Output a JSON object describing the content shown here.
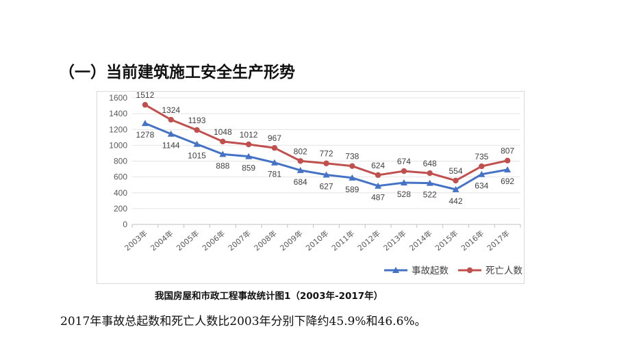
{
  "heading": "（一）当前建筑施工安全生产形势",
  "caption": "我国房屋和市政工程事故统计图1（2003年-2017年）",
  "summary": "2017年事故总起数和死亡人数比2003年分别下降约45.9%和46.6%。",
  "chart_data": {
    "type": "line",
    "title": "",
    "xlabel": "",
    "ylabel": "",
    "categories": [
      "2003年",
      "2004年",
      "2005年",
      "2006年",
      "2007年",
      "2008年",
      "2009年",
      "2010年",
      "2011年",
      "2012年",
      "2013年",
      "2014年",
      "2015年",
      "2016年",
      "2017年"
    ],
    "ylim": [
      0,
      1600
    ],
    "yticks": [
      0,
      200,
      400,
      600,
      800,
      1000,
      1200,
      1400,
      1600
    ],
    "grid": true,
    "legend_position": "bottom-right",
    "series": [
      {
        "name": "事故起数",
        "color": "#4472c4",
        "marker": "triangle",
        "values": [
          1278,
          1144,
          1015,
          888,
          859,
          781,
          684,
          627,
          589,
          487,
          528,
          522,
          442,
          634,
          692
        ]
      },
      {
        "name": "死亡人数",
        "color": "#c0504d",
        "marker": "circle",
        "values": [
          1512,
          1324,
          1193,
          1048,
          1012,
          967,
          802,
          772,
          738,
          624,
          674,
          648,
          554,
          735,
          807
        ]
      }
    ]
  }
}
